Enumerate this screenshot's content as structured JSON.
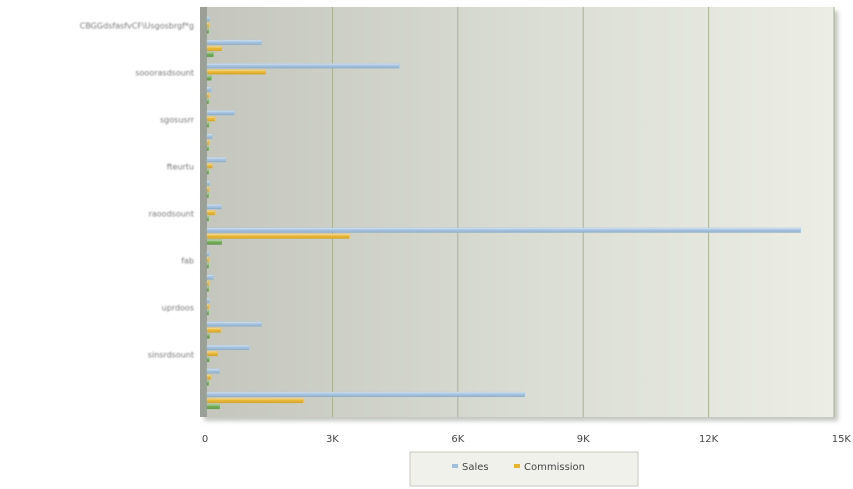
{
  "chart_data": {
    "type": "bar",
    "orientation": "horizontal",
    "grid": true,
    "legend_position": "bottom",
    "xlim": [
      0,
      15000
    ],
    "x_ticks": [
      "0",
      "3K",
      "6K",
      "9K",
      "12K",
      "15K"
    ],
    "categories": [
      "CBGGdsfasfvCF\\Usgosbrgf*g",
      "",
      "sooorasdsount",
      "",
      "sgosusrr",
      "",
      "fteurtu",
      "",
      "raoodsount",
      "",
      "fab",
      "",
      "uprdoos",
      "",
      "sinsrdsount",
      "",
      ""
    ],
    "series": [
      {
        "name": "Sales",
        "color": "#9fbfdd",
        "values": [
          60,
          1300,
          4600,
          90,
          650,
          120,
          450,
          60,
          350,
          14200,
          40,
          150,
          60,
          1300,
          1000,
          300,
          7600
        ]
      },
      {
        "name": "Commission",
        "color": "#e8b42c",
        "values": [
          20,
          350,
          1400,
          30,
          180,
          30,
          120,
          15,
          180,
          3400,
          10,
          30,
          15,
          320,
          250,
          80,
          2300
        ]
      },
      {
        "name": "",
        "color": "#6aa84f",
        "values": [
          10,
          150,
          100,
          15,
          40,
          15,
          30,
          8,
          30,
          350,
          5,
          15,
          8,
          60,
          50,
          20,
          300
        ]
      }
    ]
  }
}
